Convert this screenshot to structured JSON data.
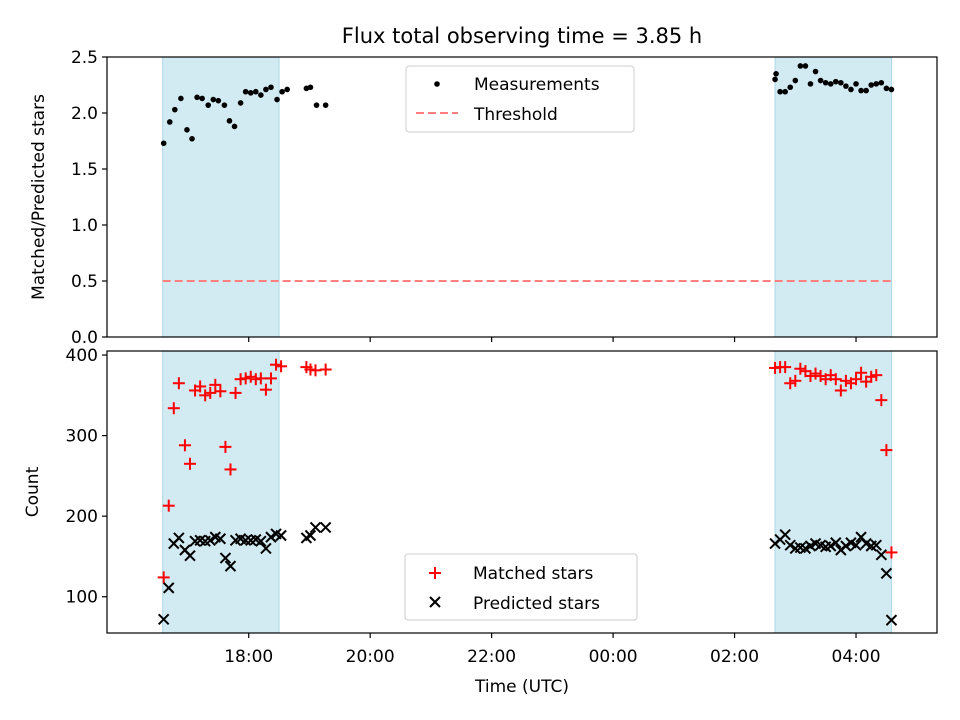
{
  "title": "Flux total observing time = 3.85 h",
  "colors": {
    "shade": "#add8e6",
    "threshold": "#ff7f7f",
    "matched": "#ff0000",
    "predicted": "#000000",
    "measurements": "#000000"
  },
  "chart_data": [
    {
      "type": "scatter",
      "ylabel": "Matched/Predicted stars",
      "ylim": [
        0.0,
        2.5
      ],
      "yticks": [
        "0.0",
        "0.5",
        "1.0",
        "1.5",
        "2.0",
        "2.5"
      ],
      "legend": {
        "position": "top-center",
        "entries": [
          "Measurements",
          "Threshold"
        ]
      },
      "threshold": 0.5,
      "shaded_intervals": [
        [
          "16:35",
          "18:30"
        ],
        [
          "02:40",
          "04:35"
        ]
      ],
      "series": [
        {
          "name": "Measurements",
          "points": [
            [
              "16:36",
              1.73
            ],
            [
              "16:42",
              1.92
            ],
            [
              "16:47",
              2.03
            ],
            [
              "16:53",
              2.13
            ],
            [
              "16:59",
              1.85
            ],
            [
              "17:04",
              1.77
            ],
            [
              "17:09",
              2.14
            ],
            [
              "17:14",
              2.13
            ],
            [
              "17:20",
              2.07
            ],
            [
              "17:25",
              2.12
            ],
            [
              "17:30",
              2.11
            ],
            [
              "17:36",
              2.07
            ],
            [
              "17:41",
              1.93
            ],
            [
              "17:46",
              1.88
            ],
            [
              "17:52",
              2.09
            ],
            [
              "17:57",
              2.19
            ],
            [
              "18:02",
              2.18
            ],
            [
              "18:07",
              2.19
            ],
            [
              "18:12",
              2.16
            ],
            [
              "18:17",
              2.21
            ],
            [
              "18:22",
              2.23
            ],
            [
              "18:28",
              2.12
            ],
            [
              "18:33",
              2.19
            ],
            [
              "18:38",
              2.21
            ],
            [
              "18:57",
              2.22
            ],
            [
              "19:01",
              2.23
            ],
            [
              "19:07",
              2.07
            ],
            [
              "19:16",
              2.07
            ],
            [
              "02:40",
              2.3
            ],
            [
              "02:41",
              2.35
            ],
            [
              "02:45",
              2.19
            ],
            [
              "02:50",
              2.19
            ],
            [
              "02:55",
              2.23
            ],
            [
              "03:00",
              2.29
            ],
            [
              "03:05",
              2.42
            ],
            [
              "03:10",
              2.42
            ],
            [
              "03:15",
              2.26
            ],
            [
              "03:20",
              2.37
            ],
            [
              "03:25",
              2.29
            ],
            [
              "03:30",
              2.27
            ],
            [
              "03:35",
              2.26
            ],
            [
              "03:40",
              2.28
            ],
            [
              "03:45",
              2.27
            ],
            [
              "03:50",
              2.24
            ],
            [
              "03:55",
              2.21
            ],
            [
              "04:00",
              2.26
            ],
            [
              "04:05",
              2.2
            ],
            [
              "04:10",
              2.2
            ],
            [
              "04:15",
              2.25
            ],
            [
              "04:20",
              2.26
            ],
            [
              "04:25",
              2.27
            ],
            [
              "04:30",
              2.22
            ],
            [
              "04:35",
              2.21
            ]
          ]
        }
      ]
    },
    {
      "type": "scatter",
      "xlabel": "Time (UTC)",
      "ylabel": "Count",
      "ylim": [
        55,
        405
      ],
      "yticks": [
        "100",
        "200",
        "300",
        "400"
      ],
      "xticks": [
        "18:00",
        "20:00",
        "22:00",
        "00:00",
        "02:00",
        "04:00"
      ],
      "legend": {
        "position": "bottom-center",
        "entries": [
          "Matched stars",
          "Predicted stars"
        ]
      },
      "shaded_intervals": [
        [
          "16:35",
          "18:30"
        ],
        [
          "02:40",
          "04:35"
        ]
      ],
      "series": [
        {
          "name": "Matched stars",
          "marker": "+",
          "points": [
            [
              "16:36",
              124
            ],
            [
              "16:41",
              213
            ],
            [
              "16:46",
              334
            ],
            [
              "16:51",
              365
            ],
            [
              "16:57",
              288
            ],
            [
              "17:02",
              265
            ],
            [
              "17:07",
              356
            ],
            [
              "17:12",
              361
            ],
            [
              "17:17",
              350
            ],
            [
              "17:22",
              353
            ],
            [
              "17:27",
              363
            ],
            [
              "17:32",
              355
            ],
            [
              "17:37",
              286
            ],
            [
              "17:42",
              258
            ],
            [
              "17:47",
              353
            ],
            [
              "17:52",
              370
            ],
            [
              "17:57",
              371
            ],
            [
              "18:02",
              373
            ],
            [
              "18:07",
              370
            ],
            [
              "18:12",
              371
            ],
            [
              "18:17",
              357
            ],
            [
              "18:22",
              371
            ],
            [
              "18:27",
              388
            ],
            [
              "18:32",
              386
            ],
            [
              "18:57",
              385
            ],
            [
              "19:01",
              382
            ],
            [
              "19:06",
              381
            ],
            [
              "19:16",
              382
            ],
            [
              "02:40",
              384
            ],
            [
              "02:45",
              385
            ],
            [
              "02:50",
              385
            ],
            [
              "02:55",
              365
            ],
            [
              "03:00",
              368
            ],
            [
              "03:05",
              383
            ],
            [
              "03:10",
              380
            ],
            [
              "03:15",
              374
            ],
            [
              "03:20",
              377
            ],
            [
              "03:25",
              374
            ],
            [
              "03:30",
              370
            ],
            [
              "03:35",
              375
            ],
            [
              "03:40",
              370
            ],
            [
              "03:45",
              356
            ],
            [
              "03:50",
              368
            ],
            [
              "03:55",
              365
            ],
            [
              "04:00",
              370
            ],
            [
              "04:05",
              378
            ],
            [
              "04:10",
              367
            ],
            [
              "04:15",
              373
            ],
            [
              "04:20",
              375
            ],
            [
              "04:25",
              344
            ],
            [
              "04:30",
              282
            ],
            [
              "04:35",
              155
            ]
          ]
        },
        {
          "name": "Predicted stars",
          "marker": "x",
          "points": [
            [
              "16:36",
              72
            ],
            [
              "16:41",
              111
            ],
            [
              "16:46",
              166
            ],
            [
              "16:51",
              173
            ],
            [
              "16:57",
              158
            ],
            [
              "17:02",
              151
            ],
            [
              "17:07",
              169
            ],
            [
              "17:12",
              170
            ],
            [
              "17:17",
              169
            ],
            [
              "17:22",
              170
            ],
            [
              "17:27",
              174
            ],
            [
              "17:32",
              172
            ],
            [
              "17:37",
              148
            ],
            [
              "17:42",
              138
            ],
            [
              "17:47",
              170
            ],
            [
              "17:52",
              172
            ],
            [
              "17:57",
              170
            ],
            [
              "18:02",
              170
            ],
            [
              "18:07",
              171
            ],
            [
              "18:12",
              169
            ],
            [
              "18:17",
              160
            ],
            [
              "18:22",
              174
            ],
            [
              "18:27",
              178
            ],
            [
              "18:32",
              176
            ],
            [
              "18:57",
              173
            ],
            [
              "19:01",
              176
            ],
            [
              "19:06",
              186
            ],
            [
              "19:16",
              186
            ],
            [
              "02:40",
              166
            ],
            [
              "02:45",
              171
            ],
            [
              "02:50",
              177
            ],
            [
              "02:55",
              164
            ],
            [
              "03:00",
              160
            ],
            [
              "03:05",
              161
            ],
            [
              "03:10",
              160
            ],
            [
              "03:15",
              163
            ],
            [
              "03:20",
              166
            ],
            [
              "03:25",
              164
            ],
            [
              "03:30",
              162
            ],
            [
              "03:35",
              163
            ],
            [
              "03:40",
              167
            ],
            [
              "03:45",
              158
            ],
            [
              "03:50",
              163
            ],
            [
              "03:55",
              167
            ],
            [
              "04:00",
              164
            ],
            [
              "04:05",
              174
            ],
            [
              "04:10",
              166
            ],
            [
              "04:15",
              163
            ],
            [
              "04:20",
              164
            ],
            [
              "04:25",
              152
            ],
            [
              "04:30",
              129
            ],
            [
              "04:35",
              71
            ]
          ]
        }
      ]
    }
  ]
}
